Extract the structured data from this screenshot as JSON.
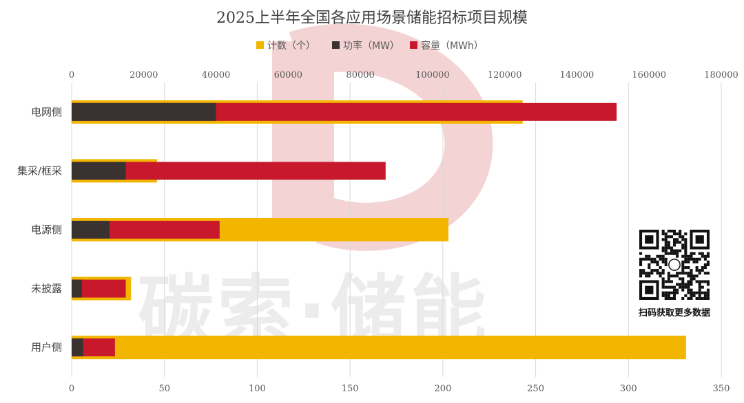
{
  "watermark": {
    "text": "碳索·储能",
    "logo_color": "#f3d3d3"
  },
  "qr": {
    "caption": "扫码获取更多数据"
  },
  "chart_data": {
    "type": "bar",
    "orientation": "horizontal",
    "title": "2025上半年全国各应用场景储能招标项目规模",
    "categories": [
      "电网侧",
      "集采/框采",
      "电源侧",
      "未披露",
      "用户侧"
    ],
    "legend_position": "top",
    "grid": true,
    "axes": {
      "top": {
        "ticks": [
          "0",
          "20000",
          "40000",
          "60000",
          "80000",
          "100000",
          "120000",
          "140000",
          "160000",
          "180000"
        ],
        "lim": [
          0,
          180000
        ]
      },
      "bottom": {
        "ticks": [
          "0",
          "50",
          "100",
          "150",
          "200",
          "250",
          "300",
          "350"
        ],
        "lim": [
          0,
          350
        ]
      }
    },
    "series": [
      {
        "name": "计数（个）",
        "axis": "bottom",
        "color": "#f2b600",
        "values": [
          243,
          46,
          203,
          32,
          331
        ]
      },
      {
        "name": "功率（MW）",
        "axis": "top",
        "color": "#3a3230",
        "values": [
          40000,
          15000,
          10500,
          2800,
          3200
        ]
      },
      {
        "name": "容量（MWh）",
        "axis": "top",
        "color": "#c8192c",
        "values": [
          151000,
          87000,
          41000,
          15000,
          12000
        ]
      }
    ]
  }
}
